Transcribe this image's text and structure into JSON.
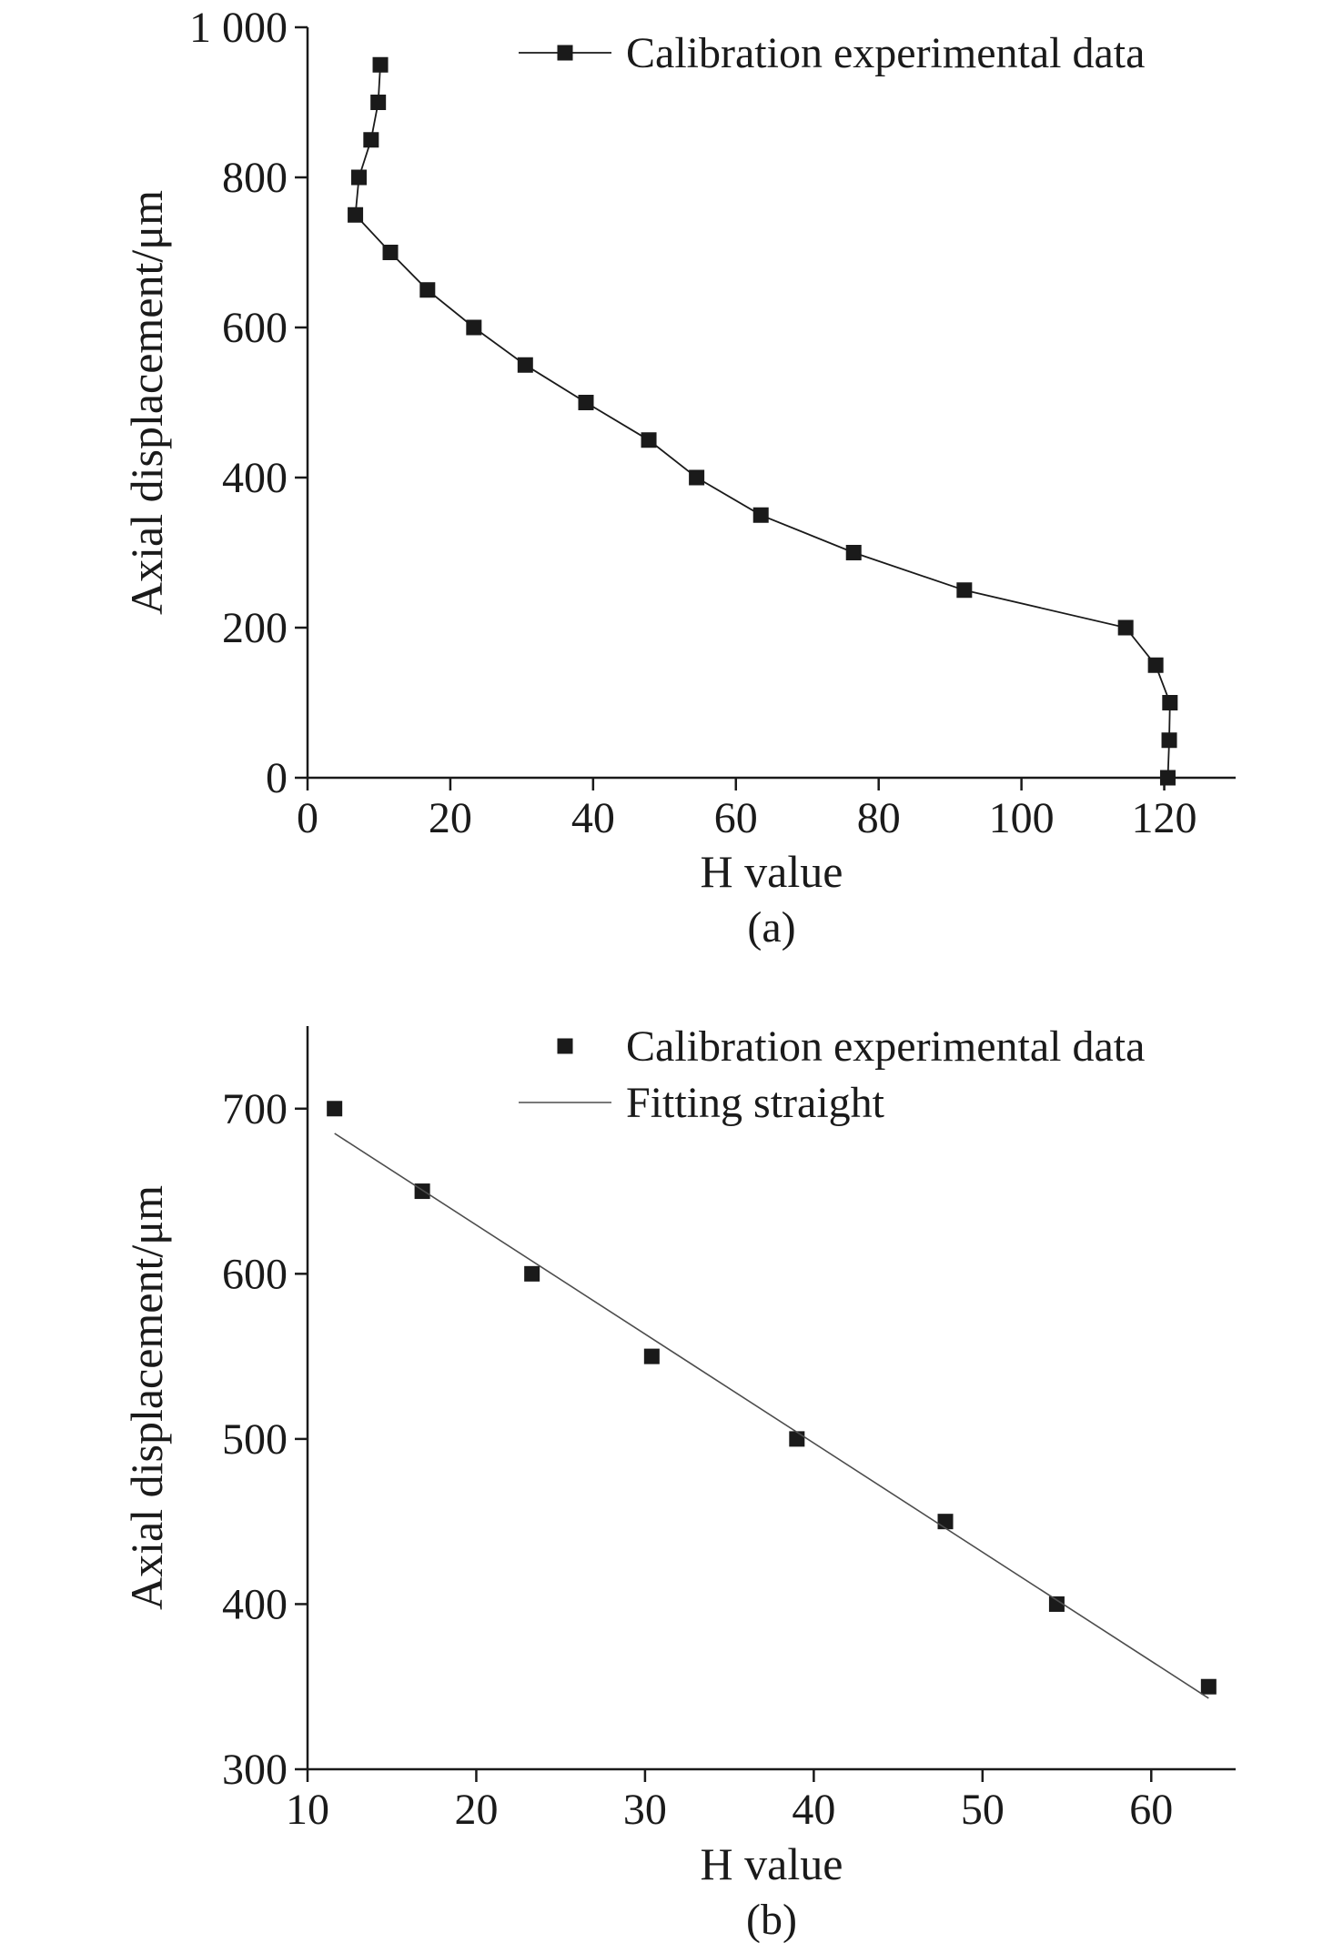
{
  "chart_data": [
    {
      "type": "line",
      "title": "",
      "caption": "(a)",
      "xlabel": "H value",
      "ylabel": "Axial displacement/μm",
      "xlim": [
        0,
        130
      ],
      "ylim": [
        0,
        1000
      ],
      "xticks": [
        0,
        20,
        40,
        60,
        80,
        100,
        120
      ],
      "yticks": [
        0,
        200,
        400,
        600,
        800,
        1000
      ],
      "xtick_labels": [
        "0",
        "20",
        "40",
        "60",
        "80",
        "100",
        "120"
      ],
      "ytick_labels": [
        "0",
        "200",
        "400",
        "600",
        "800",
        "1 000"
      ],
      "grid": false,
      "legend_position": "top-right",
      "series": [
        {
          "name": "Calibration experimental data",
          "style": "line-with-square-markers",
          "x": [
            120.5,
            120.7,
            120.8,
            118.8,
            114.6,
            92.0,
            76.5,
            63.5,
            54.5,
            47.8,
            39.0,
            30.5,
            23.3,
            16.8,
            11.6,
            6.7,
            7.2,
            8.9,
            9.9,
            10.2
          ],
          "y": [
            0,
            50,
            100,
            150,
            200,
            250,
            300,
            350,
            400,
            450,
            500,
            550,
            600,
            650,
            700,
            750,
            800,
            850,
            900,
            950
          ]
        }
      ]
    },
    {
      "type": "scatter",
      "title": "",
      "caption": "(b)",
      "xlabel": "H value",
      "ylabel": "Axial displacement/μm",
      "xlim": [
        10,
        65
      ],
      "ylim": [
        300,
        750
      ],
      "xticks": [
        10,
        20,
        30,
        40,
        50,
        60
      ],
      "yticks": [
        300,
        400,
        500,
        600,
        700
      ],
      "xtick_labels": [
        "10",
        "20",
        "30",
        "40",
        "50",
        "60"
      ],
      "ytick_labels": [
        "300",
        "400",
        "500",
        "600",
        "700"
      ],
      "grid": false,
      "legend_position": "top-right",
      "series": [
        {
          "name": "Calibration experimental data",
          "style": "square-markers",
          "x": [
            11.6,
            16.8,
            23.3,
            30.4,
            39.0,
            47.8,
            54.4,
            63.4
          ],
          "y": [
            700,
            650,
            600,
            550,
            500,
            450,
            400,
            350
          ]
        },
        {
          "name": "Fitting straight",
          "style": "thin-line",
          "x": [
            11.6,
            63.4
          ],
          "y": [
            685,
            343
          ]
        }
      ]
    }
  ]
}
